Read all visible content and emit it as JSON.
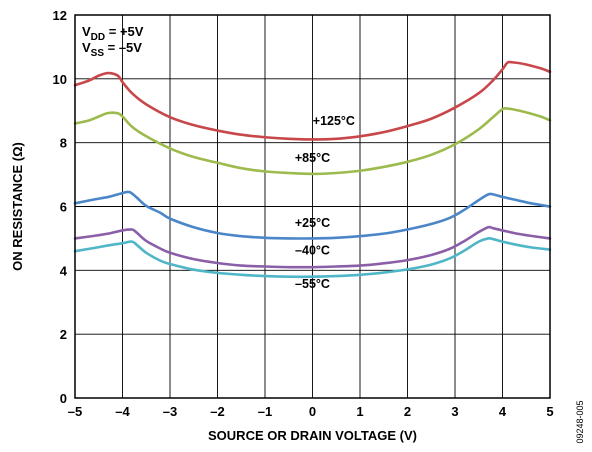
{
  "chart_data": {
    "type": "line",
    "xlabel": "SOURCE OR DRAIN VOLTAGE (V)",
    "ylabel": "ON RESISTANCE (Ω)",
    "xlim": [
      -5,
      5
    ],
    "ylim": [
      0,
      12
    ],
    "xticks": [
      -5,
      -4,
      -3,
      -2,
      -1,
      0,
      1,
      2,
      3,
      4,
      5
    ],
    "xtick_labels": [
      "–5",
      "–4",
      "–3",
      "–2",
      "–1",
      "0",
      "1",
      "2",
      "3",
      "4",
      "5"
    ],
    "yticks": [
      0,
      2,
      4,
      6,
      8,
      10,
      12
    ],
    "ytick_labels": [
      "0",
      "2",
      "4",
      "6",
      "8",
      "10",
      "12"
    ],
    "grid": true,
    "conditions": [
      {
        "main": "V",
        "sub": "DD",
        "rest": " = +5V"
      },
      {
        "main": "V",
        "sub": "SS",
        "rest": " = –5V"
      }
    ],
    "figure_id": "09248-005",
    "series": [
      {
        "name": "+125°C",
        "color": "#c8474a",
        "label_at": [
          0.45,
          8.55
        ],
        "x": [
          -5,
          -4.7,
          -4.5,
          -4.3,
          -4.1,
          -4,
          -3.8,
          -3.5,
          -3,
          -2.5,
          -2,
          -1.5,
          -1,
          -0.5,
          0,
          0.5,
          1,
          1.5,
          2,
          2.5,
          3,
          3.5,
          3.8,
          4,
          4.1,
          4.2,
          4.5,
          4.8,
          5
        ],
        "y": [
          9.8,
          9.95,
          10.1,
          10.18,
          10.1,
          9.9,
          9.55,
          9.2,
          8.8,
          8.55,
          8.38,
          8.25,
          8.17,
          8.12,
          8.1,
          8.12,
          8.2,
          8.33,
          8.52,
          8.75,
          9.1,
          9.55,
          9.95,
          10.3,
          10.5,
          10.52,
          10.45,
          10.33,
          10.22
        ]
      },
      {
        "name": "+85°C",
        "color": "#9dba4d",
        "label_at": [
          0.0,
          7.4
        ],
        "x": [
          -5,
          -4.7,
          -4.5,
          -4.3,
          -4.1,
          -4,
          -3.8,
          -3.5,
          -3,
          -2.5,
          -2,
          -1.5,
          -1,
          -0.5,
          0,
          0.5,
          1,
          1.5,
          2,
          2.5,
          3,
          3.5,
          3.8,
          4,
          4.1,
          4.2,
          4.5,
          4.8,
          5
        ],
        "y": [
          8.6,
          8.7,
          8.82,
          8.93,
          8.92,
          8.82,
          8.5,
          8.2,
          7.82,
          7.55,
          7.37,
          7.2,
          7.1,
          7.05,
          7.02,
          7.05,
          7.12,
          7.24,
          7.4,
          7.62,
          7.95,
          8.42,
          8.8,
          9.05,
          9.07,
          9.05,
          8.95,
          8.82,
          8.7
        ]
      },
      {
        "name": "+25°C",
        "color": "#4a86c8",
        "label_at": [
          0.0,
          5.35
        ],
        "x": [
          -5,
          -4.6,
          -4.3,
          -4,
          -3.85,
          -3.7,
          -3.5,
          -3.2,
          -3,
          -2.5,
          -2,
          -1.5,
          -1,
          -0.5,
          0,
          0.5,
          1,
          1.5,
          2,
          2.5,
          2.9,
          3.2,
          3.5,
          3.7,
          3.8,
          4,
          4.3,
          4.6,
          5
        ],
        "y": [
          6.1,
          6.22,
          6.3,
          6.42,
          6.45,
          6.28,
          6.02,
          5.8,
          5.62,
          5.35,
          5.17,
          5.07,
          5.02,
          5.0,
          5.0,
          5.02,
          5.07,
          5.15,
          5.28,
          5.45,
          5.65,
          5.9,
          6.2,
          6.38,
          6.38,
          6.3,
          6.2,
          6.1,
          6.0
        ]
      },
      {
        "name": "–40°C",
        "color": "#8a5fa8",
        "label_at": [
          0.0,
          4.5
        ],
        "x": [
          -5,
          -4.6,
          -4.3,
          -4,
          -3.8,
          -3.7,
          -3.5,
          -3.2,
          -3,
          -2.5,
          -2,
          -1.5,
          -1,
          -0.5,
          0,
          0.5,
          1,
          1.5,
          2,
          2.5,
          2.9,
          3.2,
          3.5,
          3.7,
          3.8,
          4,
          4.3,
          4.6,
          5
        ],
        "y": [
          5.0,
          5.08,
          5.15,
          5.25,
          5.28,
          5.18,
          4.92,
          4.68,
          4.55,
          4.35,
          4.23,
          4.15,
          4.12,
          4.1,
          4.1,
          4.12,
          4.15,
          4.22,
          4.32,
          4.48,
          4.68,
          4.92,
          5.2,
          5.35,
          5.32,
          5.25,
          5.15,
          5.08,
          5.0
        ]
      },
      {
        "name": "–55°C",
        "color": "#4fb6c7",
        "label_at": [
          0.0,
          3.45
        ],
        "x": [
          -5,
          -4.6,
          -4.3,
          -4,
          -3.8,
          -3.7,
          -3.5,
          -3.2,
          -3,
          -2.5,
          -2,
          -1.5,
          -1,
          -0.5,
          0,
          0.5,
          1,
          1.5,
          2,
          2.5,
          2.9,
          3.2,
          3.5,
          3.7,
          3.8,
          4,
          4.3,
          4.6,
          5
        ],
        "y": [
          4.6,
          4.7,
          4.78,
          4.85,
          4.9,
          4.8,
          4.55,
          4.3,
          4.2,
          4.02,
          3.92,
          3.86,
          3.82,
          3.8,
          3.8,
          3.82,
          3.86,
          3.93,
          4.03,
          4.18,
          4.38,
          4.62,
          4.9,
          5.0,
          4.98,
          4.9,
          4.8,
          4.72,
          4.65
        ]
      }
    ]
  }
}
